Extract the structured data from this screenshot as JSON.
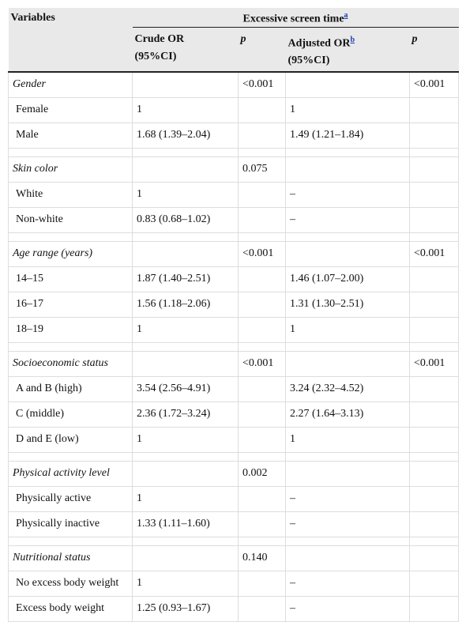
{
  "header": {
    "variables": "Variables",
    "group": "Excessive screen time",
    "group_note": "a",
    "crude": [
      "Crude OR",
      "(95%CI)"
    ],
    "p1": "p",
    "adjusted": [
      "Adjusted OR",
      "(95%CI)"
    ],
    "adjusted_note": "b",
    "p2": "p"
  },
  "groups": [
    {
      "label": "Gender",
      "p_crude": "<0.001",
      "p_adjusted": "<0.001",
      "rows": [
        {
          "label": "Female",
          "crude": "1",
          "adjusted": "1"
        },
        {
          "label": "Male",
          "crude": "1.68 (1.39–2.04)",
          "adjusted": "1.49 (1.21–1.84)"
        }
      ]
    },
    {
      "label": "Skin color",
      "p_crude": "0.075",
      "rows": [
        {
          "label": "White",
          "crude": "1",
          "adjusted": "–"
        },
        {
          "label": "Non-white",
          "crude": "0.83 (0.68–1.02)",
          "adjusted": "–"
        }
      ]
    },
    {
      "label": "Age range (years)",
      "p_crude": "<0.001",
      "p_adjusted": "<0.001",
      "rows": [
        {
          "label": "14–15",
          "crude": "1.87 (1.40–2.51)",
          "adjusted": "1.46 (1.07–2.00)"
        },
        {
          "label": "16–17",
          "crude": "1.56 (1.18–2.06)",
          "adjusted": "1.31 (1.30–2.51)"
        },
        {
          "label": "18–19",
          "crude": "1",
          "adjusted": "1"
        }
      ]
    },
    {
      "label": "Socioeconomic status",
      "p_crude": "<0.001",
      "p_adjusted": "<0.001",
      "rows": [
        {
          "label": "A and B (high)",
          "crude": "3.54 (2.56–4.91)",
          "adjusted": "3.24 (2.32–4.52)"
        },
        {
          "label": "C (middle)",
          "crude": "2.36 (1.72–3.24)",
          "adjusted": "2.27 (1.64–3.13)"
        },
        {
          "label": "D and E (low)",
          "crude": "1",
          "adjusted": "1"
        }
      ]
    },
    {
      "label": "Physical activity level",
      "p_crude": "0.002",
      "rows": [
        {
          "label": "Physically active",
          "crude": "1",
          "adjusted": "–"
        },
        {
          "label": "Physically inactive",
          "crude": "1.33 (1.11–1.60)",
          "adjusted": "–"
        }
      ]
    },
    {
      "label": "Nutritional status",
      "p_crude": "0.140",
      "rows": [
        {
          "label": "No excess body weight",
          "crude": "1",
          "adjusted": "–"
        },
        {
          "label": "Excess body weight",
          "crude": "1.25 (0.93–1.67)",
          "adjusted": "–"
        }
      ]
    }
  ]
}
